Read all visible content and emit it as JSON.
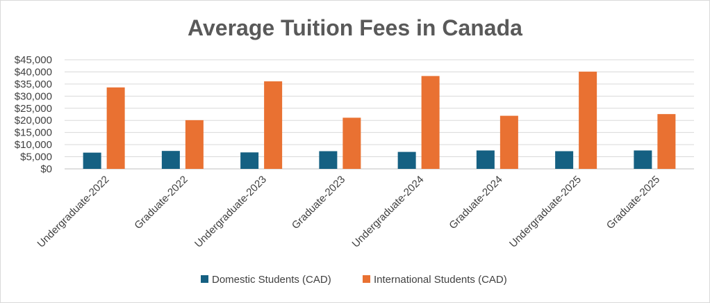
{
  "chart_data": {
    "type": "bar",
    "title": "Average Tuition Fees in Canada",
    "xlabel": "",
    "ylabel": "",
    "categories": [
      "Undergraduate-2022",
      "Graduate-2022",
      "Undergraduate-2023",
      "Graduate-2023",
      "Undergraduate-2024",
      "Graduate-2024",
      "Undergraduate-2025",
      "Graduate-2025"
    ],
    "series": [
      {
        "name": "Domestic Students (CAD)",
        "color": "#156082",
        "values": [
          6700,
          7400,
          6800,
          7300,
          7000,
          7600,
          7300,
          7600
        ]
      },
      {
        "name": "International Students (CAD)",
        "color": "#E97132",
        "values": [
          33600,
          20100,
          36100,
          21100,
          38300,
          21900,
          40100,
          22600
        ]
      }
    ],
    "ylim": [
      0,
      45000
    ],
    "yticks": [
      0,
      5000,
      10000,
      15000,
      20000,
      25000,
      30000,
      35000,
      40000,
      45000
    ],
    "ytick_labels": [
      "$0",
      "$5,000",
      "$10,000",
      "$15,000",
      "$20,000",
      "$25,000",
      "$30,000",
      "$35,000",
      "$40,000",
      "$45,000"
    ],
    "grid": true,
    "legend_position": "bottom"
  }
}
